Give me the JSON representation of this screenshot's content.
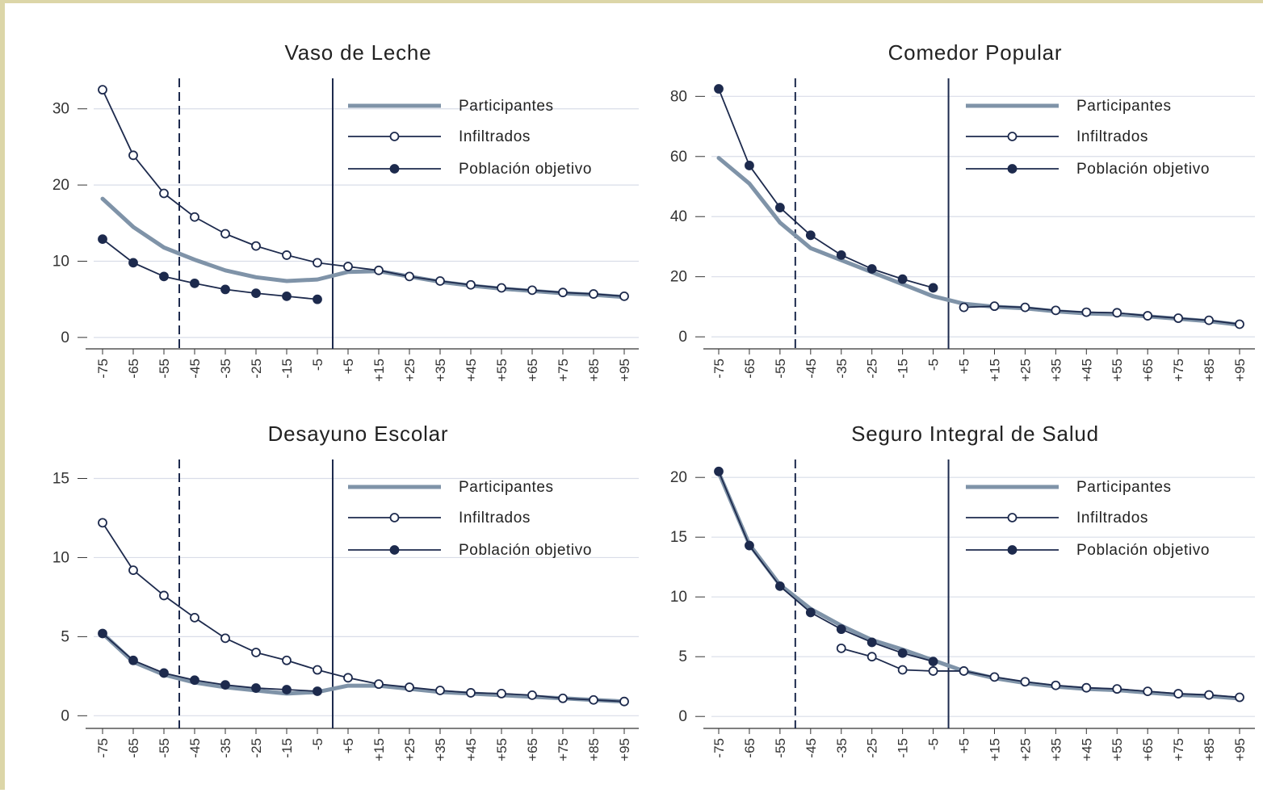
{
  "colors": {
    "participantes": "#7f93a8",
    "infiltrados": "#1d2a4d",
    "poblacion": "#1d2a4d",
    "grid": "#d9dde8",
    "frame": "#dcd6a8"
  },
  "chart_data": [
    {
      "type": "line",
      "title": "Vaso de Leche",
      "categories": [
        "-75",
        "-65",
        "-55",
        "-45",
        "-35",
        "-25",
        "-15",
        "-5",
        "+5",
        "+15",
        "+25",
        "+35",
        "+45",
        "+55",
        "+65",
        "+75",
        "+85",
        "+95"
      ],
      "yticks": [
        0,
        10,
        20,
        30
      ],
      "ylim": [
        -1.5,
        34
      ],
      "legend": [
        "Participantes",
        "Infiltrados",
        "Población objetivo"
      ],
      "grid": true,
      "vlines": [
        {
          "at": "-50",
          "style": "dashed"
        },
        {
          "at": "0",
          "style": "solid"
        }
      ],
      "series": [
        {
          "name": "Participantes",
          "values": [
            18.2,
            14.5,
            11.8,
            10.2,
            8.8,
            7.9,
            7.4,
            7.6,
            8.6,
            8.7,
            8.0,
            7.3,
            6.8,
            6.4,
            6.1,
            5.8,
            5.6,
            5.3
          ]
        },
        {
          "name": "Infiltrados",
          "values": [
            32.5,
            23.9,
            18.9,
            15.8,
            13.6,
            12.0,
            10.8,
            9.8,
            9.3,
            8.8,
            8.0,
            7.4,
            6.9,
            6.5,
            6.2,
            5.9,
            5.7,
            5.4
          ]
        },
        {
          "name": "Población objetivo",
          "values": [
            12.9,
            9.8,
            8.0,
            7.1,
            6.3,
            5.8,
            5.4,
            5.0,
            null,
            null,
            null,
            null,
            null,
            null,
            null,
            null,
            null,
            null
          ]
        }
      ]
    },
    {
      "type": "line",
      "title": "Comedor Popular",
      "categories": [
        "-75",
        "-65",
        "-55",
        "-45",
        "-35",
        "-25",
        "-15",
        "-5",
        "+5",
        "+15",
        "+25",
        "+35",
        "+45",
        "+55",
        "+65",
        "+75",
        "+85",
        "+95"
      ],
      "yticks": [
        0,
        20,
        40,
        60,
        80
      ],
      "ylim": [
        -4,
        86
      ],
      "legend": [
        "Participantes",
        "Infiltrados",
        "Población objetivo"
      ],
      "grid": true,
      "vlines": [
        {
          "at": "-50",
          "style": "dashed"
        },
        {
          "at": "0",
          "style": "solid"
        }
      ],
      "series": [
        {
          "name": "Participantes",
          "values": [
            59.5,
            51.0,
            38.0,
            29.5,
            25.5,
            21.5,
            17.5,
            13.5,
            11.0,
            10.0,
            9.5,
            8.5,
            7.8,
            7.5,
            6.8,
            6.0,
            5.2,
            4.0
          ]
        },
        {
          "name": "Infiltrados",
          "values": [
            null,
            null,
            null,
            null,
            null,
            null,
            null,
            null,
            9.8,
            10.2,
            9.8,
            8.8,
            8.2,
            8.0,
            7.0,
            6.2,
            5.5,
            4.2
          ]
        },
        {
          "name": "Población objetivo",
          "values": [
            82.5,
            57.0,
            43.0,
            33.8,
            27.2,
            22.6,
            19.2,
            16.3,
            null,
            null,
            null,
            null,
            null,
            null,
            null,
            null,
            null,
            null
          ]
        }
      ]
    },
    {
      "type": "line",
      "title": "Desayuno Escolar",
      "categories": [
        "-75",
        "-65",
        "-55",
        "-45",
        "-35",
        "-25",
        "-15",
        "-5",
        "+5",
        "+15",
        "+25",
        "+35",
        "+45",
        "+55",
        "+65",
        "+75",
        "+85",
        "+95"
      ],
      "yticks": [
        0,
        5,
        10,
        15
      ],
      "ylim": [
        -0.8,
        16.2
      ],
      "legend": [
        "Participantes",
        "Infiltrados",
        "Población objetivo"
      ],
      "grid": true,
      "vlines": [
        {
          "at": "-50",
          "style": "dashed"
        },
        {
          "at": "0",
          "style": "solid"
        }
      ],
      "series": [
        {
          "name": "Participantes",
          "values": [
            5.2,
            3.4,
            2.6,
            2.1,
            1.8,
            1.6,
            1.4,
            1.5,
            1.9,
            1.9,
            1.7,
            1.5,
            1.4,
            1.3,
            1.2,
            1.1,
            1.0,
            0.9
          ]
        },
        {
          "name": "Infiltrados",
          "values": [
            12.2,
            9.2,
            7.6,
            6.2,
            4.9,
            4.0,
            3.5,
            2.9,
            2.4,
            2.0,
            1.8,
            1.6,
            1.45,
            1.4,
            1.3,
            1.1,
            1.0,
            0.9
          ]
        },
        {
          "name": "Población objetivo",
          "values": [
            5.2,
            3.5,
            2.7,
            2.25,
            1.95,
            1.75,
            1.65,
            1.55,
            null,
            null,
            null,
            null,
            null,
            null,
            null,
            null,
            null,
            null
          ]
        }
      ]
    },
    {
      "type": "line",
      "title": "Seguro Integral de Salud",
      "categories": [
        "-75",
        "-65",
        "-55",
        "-45",
        "-35",
        "-25",
        "-15",
        "-5",
        "+5",
        "+15",
        "+25",
        "+35",
        "+45",
        "+55",
        "+65",
        "+75",
        "+85",
        "+95"
      ],
      "yticks": [
        0,
        5,
        10,
        15,
        20
      ],
      "ylim": [
        -1,
        21.5
      ],
      "legend": [
        "Participantes",
        "Infiltrados",
        "Población objetivo"
      ],
      "grid": true,
      "vlines": [
        {
          "at": "-50",
          "style": "dashed"
        },
        {
          "at": "0",
          "style": "solid"
        }
      ],
      "series": [
        {
          "name": "Participantes",
          "values": [
            20.4,
            14.4,
            11.0,
            9.0,
            7.6,
            6.4,
            5.6,
            4.7,
            3.8,
            3.2,
            2.8,
            2.5,
            2.3,
            2.2,
            2.0,
            1.8,
            1.7,
            1.5
          ]
        },
        {
          "name": "Infiltrados",
          "values": [
            null,
            null,
            null,
            null,
            5.7,
            5.0,
            3.9,
            3.8,
            3.8,
            3.3,
            2.9,
            2.6,
            2.4,
            2.3,
            2.1,
            1.9,
            1.8,
            1.6
          ]
        },
        {
          "name": "Población objetivo",
          "values": [
            20.5,
            14.3,
            10.9,
            8.7,
            7.3,
            6.2,
            5.3,
            4.6,
            null,
            null,
            null,
            null,
            null,
            null,
            null,
            null,
            null,
            null
          ]
        }
      ]
    }
  ]
}
